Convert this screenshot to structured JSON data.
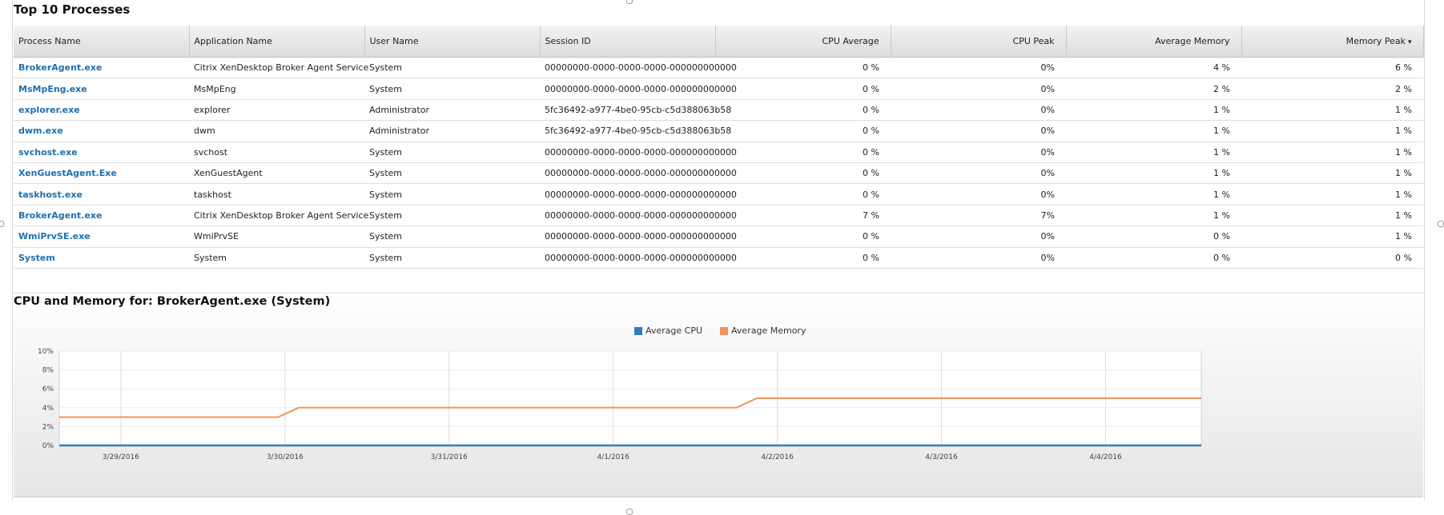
{
  "processes_section": {
    "title": "Top 10 Processes",
    "columns": [
      "Process Name",
      "Application Name",
      "User Name",
      "Session ID",
      "CPU Average",
      "CPU Peak",
      "Average Memory",
      "Memory Peak"
    ],
    "sort_indicator": "▾",
    "rows": [
      [
        "BrokerAgent.exe",
        "Citrix XenDesktop Broker Agent Service",
        "System",
        "00000000-0000-0000-0000-000000000000",
        "0 %",
        "0%",
        "4 %",
        "6 %"
      ],
      [
        "MsMpEng.exe",
        "MsMpEng",
        "System",
        "00000000-0000-0000-0000-000000000000",
        "0 %",
        "0%",
        "2 %",
        "2 %"
      ],
      [
        "explorer.exe",
        "explorer",
        "Administrator",
        "5fc36492-a977-4be0-95cb-c5d388063b58",
        "0 %",
        "0%",
        "1 %",
        "1 %"
      ],
      [
        "dwm.exe",
        "dwm",
        "Administrator",
        "5fc36492-a977-4be0-95cb-c5d388063b58",
        "0 %",
        "0%",
        "1 %",
        "1 %"
      ],
      [
        "svchost.exe",
        "svchost",
        "System",
        "00000000-0000-0000-0000-000000000000",
        "0 %",
        "0%",
        "1 %",
        "1 %"
      ],
      [
        "XenGuestAgent.Exe",
        "XenGuestAgent",
        "System",
        "00000000-0000-0000-0000-000000000000",
        "0 %",
        "0%",
        "1 %",
        "1 %"
      ],
      [
        "taskhost.exe",
        "taskhost",
        "System",
        "00000000-0000-0000-0000-000000000000",
        "0 %",
        "0%",
        "1 %",
        "1 %"
      ],
      [
        "BrokerAgent.exe",
        "Citrix XenDesktop Broker Agent Service",
        "System",
        "00000000-0000-0000-0000-000000000000",
        "7 %",
        "7%",
        "1 %",
        "1 %"
      ],
      [
        "WmiPrvSE.exe",
        "WmiPrvSE",
        "System",
        "00000000-0000-0000-0000-000000000000",
        "0 %",
        "0%",
        "0 %",
        "1 %"
      ],
      [
        "System",
        "System",
        "System",
        "00000000-0000-0000-0000-000000000000",
        "0 %",
        "0%",
        "0 %",
        "0 %"
      ]
    ]
  },
  "chart_section": {
    "title": "CPU and Memory for: BrokerAgent.exe (System)"
  },
  "chart_data": {
    "type": "line",
    "title": "CPU and Memory for: BrokerAgent.exe (System)",
    "x_ticks": [
      "3/29/2016",
      "3/30/2016",
      "3/31/2016",
      "4/1/2016",
      "4/2/2016",
      "4/3/2016",
      "4/4/2016"
    ],
    "x_range": [
      "3/28/2016 15:00",
      "4/4/2016 14:00"
    ],
    "y_ticks": [
      "0%",
      "2%",
      "4%",
      "6%",
      "8%",
      "10%"
    ],
    "ylim": [
      0,
      10
    ],
    "grid": true,
    "legend_position": "top-center",
    "series": [
      {
        "name": "Average CPU",
        "color": "#2f7dc0",
        "points": [
          [
            "3/28/2016 15:00",
            0
          ],
          [
            "4/4/2016 14:00",
            0
          ]
        ]
      },
      {
        "name": "Average Memory",
        "color": "#f0945a",
        "points": [
          [
            "3/28/2016 15:00",
            3
          ],
          [
            "3/29/2016 23:00",
            3
          ],
          [
            "3/30/2016 02:00",
            4
          ],
          [
            "4/1/2016 18:00",
            4
          ],
          [
            "4/1/2016 21:00",
            5
          ],
          [
            "4/4/2016 14:00",
            5
          ]
        ]
      }
    ]
  }
}
